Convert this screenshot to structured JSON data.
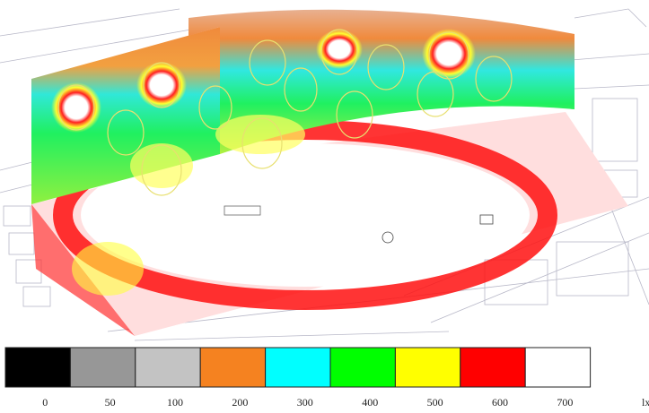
{
  "legend": {
    "items": [
      {
        "label": 0,
        "color": "#000000"
      },
      {
        "label": 50,
        "color": "#979797"
      },
      {
        "label": 100,
        "color": "#c3c3c3"
      },
      {
        "label": 200,
        "color": "#f58220"
      },
      {
        "label": 300,
        "color": "#00ffff"
      },
      {
        "label": 400,
        "color": "#00ff00"
      },
      {
        "label": 500,
        "color": "#ffff00"
      },
      {
        "label": 600,
        "color": "#ff0000"
      },
      {
        "label": 700,
        "color": "#ffffff"
      }
    ],
    "unit": "lx"
  }
}
